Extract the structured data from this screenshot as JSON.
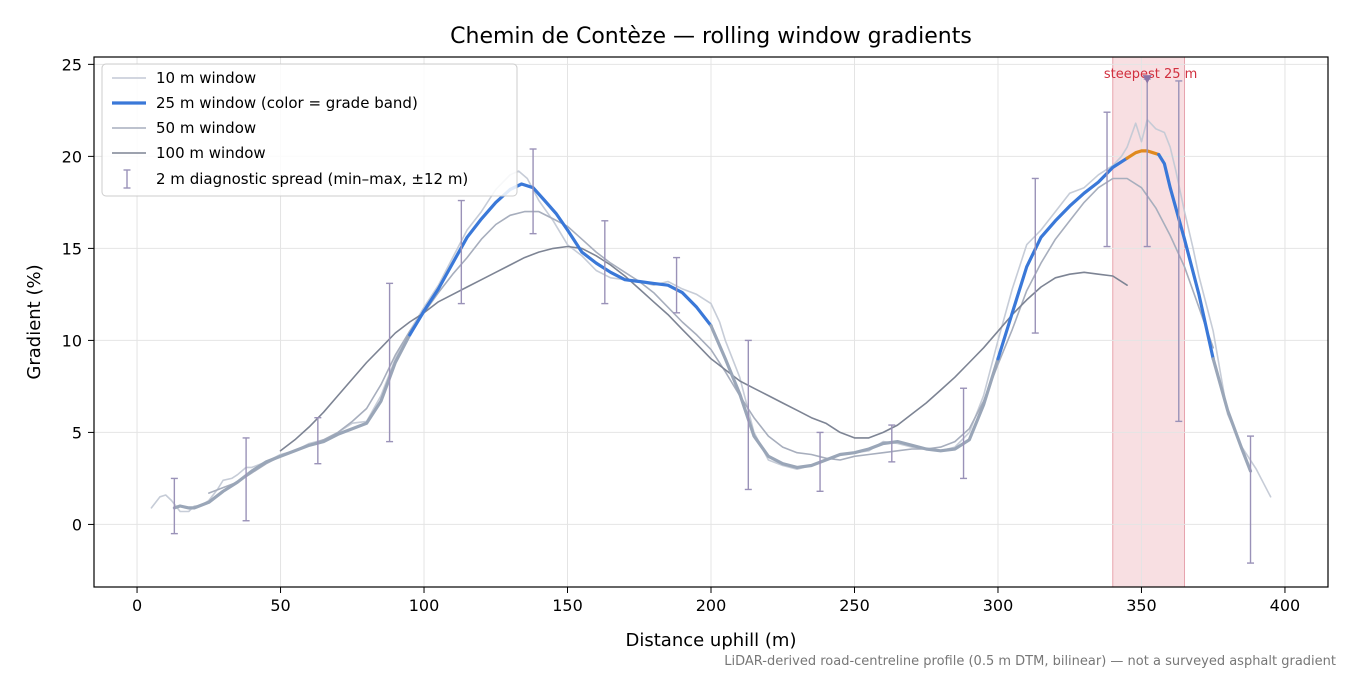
{
  "chart_data": {
    "type": "line",
    "title": "Chemin de Contèze — rolling window gradients",
    "xlabel": "Distance uphill (m)",
    "ylabel": "Gradient (%)",
    "xlim": [
      -15,
      415
    ],
    "ylim": [
      -3.4,
      25.4
    ],
    "xticks": [
      0,
      50,
      100,
      150,
      200,
      250,
      300,
      350,
      400
    ],
    "yticks": [
      0,
      5,
      10,
      15,
      20,
      25
    ],
    "grid": true,
    "legend_position": "top-left",
    "footnote": "LiDAR-derived road-centreline profile (0.5 m DTM, bilinear) — not a surveyed asphalt gradient",
    "highlight": {
      "x_start": 340,
      "x_end": 365,
      "marker_x": 352,
      "marker_y": 24.2,
      "label": "steepest 25 m",
      "color": "#f2c4ca"
    },
    "colors": {
      "w10": "#c3c9d5",
      "w25_blue": "#3a78d8",
      "w25_gray": "#9aa6b8",
      "w25_orange": "#e08a1e",
      "w50": "#a7aebd",
      "w100": "#7d8494",
      "errorbar": "#9a92b8",
      "marker": "#8a74a6"
    },
    "series": [
      {
        "name": "10 m window",
        "x": [
          5,
          8,
          10,
          12,
          15,
          18,
          20,
          22,
          25,
          28,
          30,
          33,
          35,
          38,
          40,
          45,
          50,
          55,
          60,
          65,
          70,
          75,
          80,
          85,
          90,
          95,
          100,
          105,
          110,
          115,
          120,
          125,
          130,
          133,
          136,
          140,
          145,
          150,
          155,
          160,
          165,
          170,
          175,
          180,
          185,
          190,
          195,
          200,
          203,
          205,
          210,
          215,
          220,
          225,
          230,
          235,
          240,
          245,
          250,
          255,
          260,
          265,
          270,
          275,
          280,
          285,
          290,
          295,
          300,
          305,
          310,
          315,
          320,
          325,
          330,
          335,
          340,
          343,
          345,
          348,
          350,
          352,
          355,
          358,
          360,
          362,
          365,
          368,
          370,
          375,
          380,
          385,
          390,
          395
        ],
        "y": [
          0.9,
          1.5,
          1.6,
          1.3,
          0.7,
          0.7,
          1.0,
          1.0,
          1.3,
          1.9,
          2.4,
          2.5,
          2.7,
          3.1,
          3.1,
          3.4,
          3.8,
          4.0,
          4.4,
          4.6,
          5.0,
          5.5,
          5.6,
          7.0,
          9.0,
          10.5,
          11.8,
          13.0,
          14.5,
          16.0,
          17.0,
          18.2,
          19.0,
          19.2,
          18.8,
          17.6,
          16.5,
          15.2,
          14.6,
          13.8,
          13.4,
          13.3,
          13.2,
          13.0,
          13.2,
          12.8,
          12.5,
          12.0,
          11.0,
          10.0,
          8.0,
          5.0,
          3.5,
          3.2,
          3.0,
          3.2,
          3.5,
          3.8,
          3.9,
          4.0,
          4.5,
          4.4,
          4.2,
          4.1,
          4.0,
          4.2,
          5.0,
          7.0,
          10.0,
          12.8,
          15.2,
          16.0,
          17.0,
          18.0,
          18.3,
          19.0,
          19.5,
          20.0,
          20.5,
          21.8,
          20.8,
          22.0,
          21.5,
          21.3,
          20.5,
          19.2,
          17.0,
          15.0,
          13.5,
          10.5,
          6.0,
          4.2,
          3.0,
          1.5
        ],
        "color": "#c3c9d5"
      },
      {
        "name": "25 m window (color = grade band)",
        "x": [
          13,
          15,
          18,
          20,
          25,
          30,
          35,
          40,
          45,
          50,
          55,
          60,
          65,
          70,
          75,
          80,
          85,
          90,
          95,
          100,
          105,
          110,
          115,
          120,
          125,
          130,
          134,
          138,
          142,
          146,
          150,
          155,
          160,
          165,
          170,
          175,
          180,
          185,
          190,
          195,
          200,
          205,
          210,
          215,
          220,
          225,
          230,
          235,
          240,
          245,
          250,
          255,
          260,
          265,
          270,
          275,
          280,
          285,
          290,
          295,
          300,
          305,
          310,
          315,
          320,
          325,
          330,
          335,
          340,
          345,
          348,
          350,
          352,
          354,
          356,
          358,
          360,
          365,
          370,
          375,
          380,
          385,
          388
        ],
        "y": [
          0.9,
          1.0,
          0.9,
          0.9,
          1.2,
          1.8,
          2.3,
          2.9,
          3.4,
          3.7,
          4.0,
          4.3,
          4.5,
          4.9,
          5.2,
          5.5,
          6.7,
          8.8,
          10.3,
          11.6,
          12.8,
          14.2,
          15.6,
          16.6,
          17.5,
          18.2,
          18.5,
          18.3,
          17.6,
          16.9,
          16.0,
          14.8,
          14.2,
          13.7,
          13.3,
          13.2,
          13.1,
          13.0,
          12.6,
          11.8,
          10.8,
          9.0,
          7.1,
          4.8,
          3.7,
          3.3,
          3.1,
          3.2,
          3.5,
          3.8,
          3.9,
          4.1,
          4.4,
          4.5,
          4.3,
          4.1,
          4.0,
          4.1,
          4.6,
          6.5,
          9.0,
          11.5,
          14.0,
          15.6,
          16.5,
          17.3,
          18.0,
          18.6,
          19.4,
          19.9,
          20.2,
          20.3,
          20.3,
          20.2,
          20.1,
          19.6,
          18.3,
          15.5,
          12.5,
          9.0,
          6.2,
          4.1,
          2.9
        ],
        "color": "#3a78d8"
      },
      {
        "name": "50 m window",
        "x": [
          25,
          30,
          35,
          40,
          45,
          50,
          55,
          60,
          65,
          70,
          75,
          80,
          85,
          90,
          95,
          100,
          105,
          110,
          115,
          120,
          125,
          130,
          135,
          140,
          145,
          150,
          155,
          160,
          165,
          170,
          175,
          180,
          185,
          190,
          195,
          200,
          205,
          210,
          215,
          220,
          225,
          230,
          235,
          240,
          245,
          250,
          255,
          260,
          265,
          270,
          275,
          280,
          285,
          290,
          295,
          300,
          305,
          310,
          315,
          320,
          325,
          330,
          335,
          340,
          345,
          350,
          355,
          360,
          365,
          370,
          375
        ],
        "y": [
          1.7,
          2.0,
          2.3,
          2.8,
          3.3,
          3.7,
          4.0,
          4.3,
          4.6,
          5.0,
          5.6,
          6.3,
          7.6,
          9.2,
          10.5,
          11.5,
          12.6,
          13.6,
          14.5,
          15.5,
          16.3,
          16.8,
          17.0,
          17.0,
          16.6,
          16.2,
          15.5,
          14.8,
          14.2,
          13.7,
          13.2,
          12.6,
          11.8,
          11.0,
          10.3,
          9.5,
          8.3,
          7.0,
          5.8,
          4.8,
          4.2,
          3.9,
          3.8,
          3.6,
          3.5,
          3.7,
          3.8,
          3.9,
          4.0,
          4.1,
          4.1,
          4.2,
          4.5,
          5.2,
          6.7,
          8.7,
          10.6,
          12.7,
          14.2,
          15.5,
          16.5,
          17.5,
          18.3,
          18.8,
          18.8,
          18.3,
          17.2,
          15.7,
          14.0,
          11.8,
          9.6
        ],
        "color": "#a7aebd"
      },
      {
        "name": "100 m window",
        "x": [
          50,
          55,
          60,
          65,
          70,
          75,
          80,
          85,
          90,
          95,
          100,
          105,
          110,
          115,
          120,
          125,
          130,
          135,
          140,
          145,
          150,
          155,
          160,
          165,
          170,
          175,
          180,
          185,
          190,
          195,
          200,
          205,
          210,
          215,
          220,
          225,
          230,
          235,
          240,
          245,
          250,
          255,
          260,
          265,
          270,
          275,
          280,
          285,
          290,
          295,
          300,
          305,
          310,
          315,
          320,
          325,
          330,
          335,
          340,
          345
        ],
        "y": [
          4.0,
          4.6,
          5.3,
          6.1,
          7.0,
          7.9,
          8.8,
          9.6,
          10.4,
          11.0,
          11.5,
          12.1,
          12.5,
          12.9,
          13.3,
          13.7,
          14.1,
          14.5,
          14.8,
          15.0,
          15.1,
          15.0,
          14.6,
          14.1,
          13.5,
          12.8,
          12.1,
          11.4,
          10.6,
          9.8,
          9.0,
          8.4,
          7.8,
          7.4,
          7.0,
          6.6,
          6.2,
          5.8,
          5.5,
          5.0,
          4.7,
          4.7,
          5.0,
          5.4,
          6.0,
          6.6,
          7.3,
          8.0,
          8.8,
          9.6,
          10.5,
          11.4,
          12.2,
          12.9,
          13.4,
          13.6,
          13.7,
          13.6,
          13.5,
          13.0
        ],
        "color": "#7d8494"
      }
    ],
    "errorbars": {
      "name": "2 m diagnostic spread (min–max, ±12 m)",
      "x": [
        13,
        38,
        63,
        88,
        113,
        138,
        163,
        188,
        213,
        238,
        263,
        288,
        313,
        338,
        352,
        363,
        388
      ],
      "ymin": [
        -0.5,
        0.2,
        3.3,
        4.5,
        12.0,
        15.8,
        12.0,
        11.5,
        1.9,
        1.8,
        3.4,
        2.5,
        10.4,
        15.1,
        15.1,
        5.6,
        -2.1
      ],
      "ymax": [
        2.5,
        4.7,
        5.8,
        13.1,
        17.6,
        20.4,
        16.5,
        14.5,
        10.0,
        5.0,
        5.4,
        7.4,
        18.8,
        22.4,
        24.2,
        24.1,
        4.8
      ]
    }
  }
}
